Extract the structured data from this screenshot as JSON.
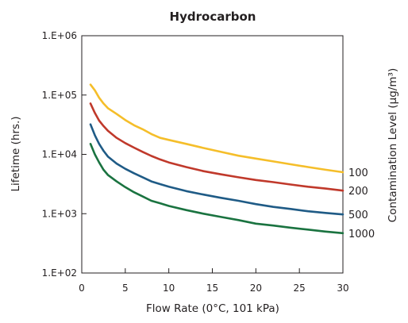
{
  "chart_data": {
    "type": "line",
    "title": "Hydrocarbon",
    "xlabel": "Flow Rate (0°C, 101 kPa)",
    "ylabel": "Lifetime (hrs.)",
    "right_label": "Contamination Level (µg/m³)",
    "xlim": [
      0,
      30
    ],
    "ylim": [
      100,
      1000000
    ],
    "yscale": "log",
    "x_ticks": [
      0,
      5,
      10,
      15,
      20,
      25,
      30
    ],
    "x_tick_labels": [
      "0",
      "5",
      "10",
      "15",
      "20",
      "25",
      "30"
    ],
    "y_ticks": [
      100,
      1000,
      10000,
      100000,
      1000000
    ],
    "y_tick_labels": [
      "1.E+02",
      "1.E+03",
      "1.E+04",
      "1.E+05",
      "1.E+06"
    ],
    "grid": false,
    "series": [
      {
        "name": "100",
        "color": "#f5be2a",
        "x": [
          1,
          1.5,
          2,
          2.5,
          3,
          4,
          5,
          6,
          7,
          8,
          9,
          10,
          12,
          14,
          16,
          18,
          20,
          22,
          24,
          26,
          28,
          30
        ],
        "y": [
          150000,
          120000,
          90000,
          72000,
          60000,
          48000,
          38000,
          31000,
          26500,
          22000,
          19000,
          17500,
          15000,
          12800,
          11000,
          9500,
          8500,
          7600,
          6800,
          6100,
          5500,
          5000
        ]
      },
      {
        "name": "200",
        "color": "#c0392b",
        "x": [
          1,
          1.5,
          2,
          2.5,
          3,
          4,
          5,
          6,
          7,
          8,
          9,
          10,
          12,
          14,
          16,
          18,
          20,
          22,
          24,
          26,
          28,
          30
        ],
        "y": [
          72000,
          50000,
          37000,
          30000,
          25000,
          19000,
          15500,
          13000,
          11000,
          9400,
          8200,
          7300,
          6100,
          5200,
          4600,
          4100,
          3700,
          3400,
          3100,
          2850,
          2650,
          2450
        ]
      },
      {
        "name": "500",
        "color": "#1f5b86",
        "x": [
          1,
          1.5,
          2,
          2.5,
          3,
          4,
          5,
          6,
          7,
          8,
          9,
          10,
          12,
          14,
          16,
          18,
          20,
          22,
          24,
          26,
          28,
          30
        ],
        "y": [
          32000,
          21000,
          15000,
          11500,
          9200,
          7000,
          5700,
          4800,
          4100,
          3500,
          3150,
          2850,
          2400,
          2100,
          1850,
          1650,
          1450,
          1300,
          1200,
          1100,
          1030,
          970
        ]
      },
      {
        "name": "1000",
        "color": "#1a7340",
        "x": [
          1,
          1.5,
          2,
          2.5,
          3,
          4,
          5,
          6,
          7,
          8,
          9,
          10,
          12,
          14,
          16,
          18,
          20,
          22,
          24,
          26,
          28,
          30
        ],
        "y": [
          15000,
          10000,
          7300,
          5500,
          4500,
          3500,
          2800,
          2300,
          1950,
          1650,
          1500,
          1350,
          1150,
          1000,
          880,
          780,
          680,
          630,
          580,
          540,
          500,
          470
        ]
      }
    ]
  }
}
